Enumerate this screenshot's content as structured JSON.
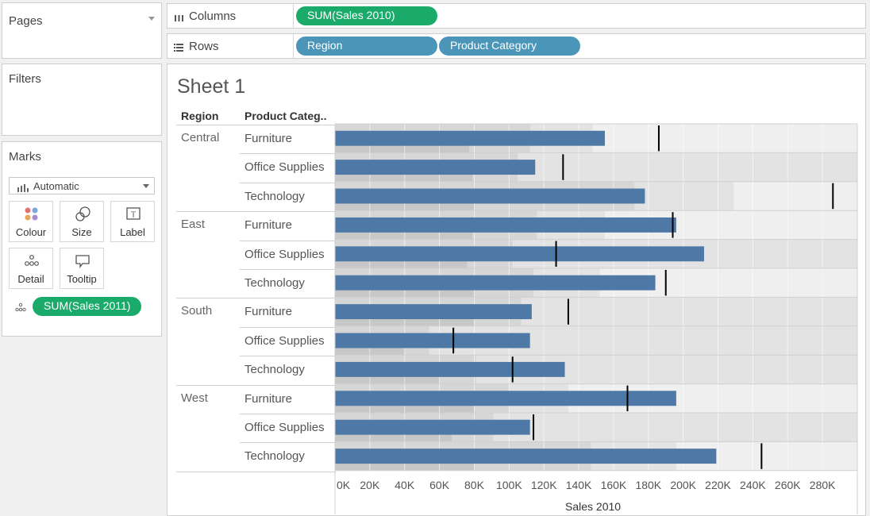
{
  "pages_panel": {
    "title": "Pages"
  },
  "filters_panel": {
    "title": "Filters"
  },
  "marks_panel": {
    "title": "Marks",
    "mark_type": "Automatic",
    "buttons": [
      {
        "label": "Colour",
        "icon": "colour-icon"
      },
      {
        "label": "Size",
        "icon": "size-icon"
      },
      {
        "label": "Label",
        "icon": "label-icon"
      },
      {
        "label": "Detail",
        "icon": "detail-icon"
      },
      {
        "label": "Tooltip",
        "icon": "tooltip-icon"
      }
    ],
    "field_pill": "SUM(Sales 2011)"
  },
  "shelves": {
    "columns": {
      "label": "Columns",
      "pills": [
        "SUM(Sales 2010)"
      ]
    },
    "rows": {
      "label": "Rows",
      "pills": [
        "Region",
        "Product Category"
      ]
    }
  },
  "sheet": {
    "title": "Sheet 1",
    "region_header": "Region",
    "category_header": "Product Categ.."
  },
  "colors": {
    "bar": "#4e79a7",
    "green_pill": "#1aab6b",
    "blue_pill": "#4b96b8",
    "ref_line": "#000000"
  },
  "chart_data": {
    "type": "bar",
    "title": "Sheet 1",
    "xlabel": "Sales 2010",
    "ylabel": "",
    "xlim": [
      0,
      300000
    ],
    "x_ticks": [
      "0K",
      "20K",
      "40K",
      "60K",
      "80K",
      "100K",
      "120K",
      "140K",
      "160K",
      "180K",
      "200K",
      "220K",
      "240K",
      "260K",
      "280K"
    ],
    "grid": true,
    "rows": [
      {
        "region": "Central",
        "category": "Furniture",
        "value": 155000,
        "target": 186000,
        "bands": [
          77000,
          112000,
          148000
        ]
      },
      {
        "region": "",
        "category": "Office Supplies",
        "value": 115000,
        "target": 131000,
        "bands": [
          79000,
          105000,
          300000
        ]
      },
      {
        "region": "",
        "category": "Technology",
        "value": 178000,
        "target": 286000,
        "bands": [
          80000,
          172000,
          229000
        ]
      },
      {
        "region": "East",
        "category": "Furniture",
        "value": 196000,
        "target": 194000,
        "bands": [
          79000,
          116000,
          155000
        ]
      },
      {
        "region": "",
        "category": "Office Supplies",
        "value": 212000,
        "target": 127000,
        "bands": [
          76000,
          102000,
          300000
        ]
      },
      {
        "region": "",
        "category": "Technology",
        "value": 184000,
        "target": 190000,
        "bands": [
          80000,
          114000,
          152000
        ]
      },
      {
        "region": "South",
        "category": "Furniture",
        "value": 113000,
        "target": 134000,
        "bands": [
          80000,
          107000,
          300000
        ]
      },
      {
        "region": "",
        "category": "Office Supplies",
        "value": 112000,
        "target": 68000,
        "bands": [
          40000,
          54000,
          300000
        ]
      },
      {
        "region": "",
        "category": "Technology",
        "value": 132000,
        "target": 102000,
        "bands": [
          60000,
          81000,
          300000
        ]
      },
      {
        "region": "West",
        "category": "Furniture",
        "value": 196000,
        "target": 168000,
        "bands": [
          80000,
          100000,
          134000
        ]
      },
      {
        "region": "",
        "category": "Office Supplies",
        "value": 112000,
        "target": 114000,
        "bands": [
          67000,
          91000,
          300000
        ]
      },
      {
        "region": "",
        "category": "Technology",
        "value": 219000,
        "target": 245000,
        "bands": [
          80000,
          147000,
          196000
        ]
      }
    ]
  }
}
